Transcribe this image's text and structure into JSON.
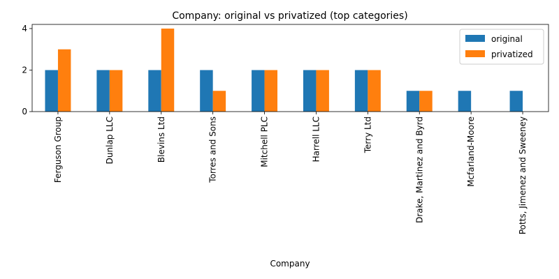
{
  "chart_data": {
    "type": "bar",
    "title": "Company: original vs privatized (top categories)",
    "xlabel": "Company",
    "ylabel": "",
    "ylim": [
      0,
      4.2
    ],
    "yticks": [
      0,
      2,
      4
    ],
    "grid": false,
    "legend_position": "top-right",
    "categories": [
      "Ferguson Group",
      "Dunlap LLC",
      "Blevins Ltd",
      "Torres and Sons",
      "Mitchell PLC",
      "Harrell LLC",
      "Terry Ltd",
      "Drake, Martinez and Byrd",
      "Mcfarland-Moore",
      "Potts, Jimenez and Sweeney"
    ],
    "series": [
      {
        "name": "original",
        "color": "#1f77b4",
        "values": [
          2,
          2,
          2,
          2,
          2,
          2,
          2,
          1,
          1,
          1
        ]
      },
      {
        "name": "privatized",
        "color": "#ff7f0e",
        "values": [
          3,
          2,
          4,
          1,
          2,
          2,
          2,
          1,
          0,
          0
        ]
      }
    ]
  }
}
